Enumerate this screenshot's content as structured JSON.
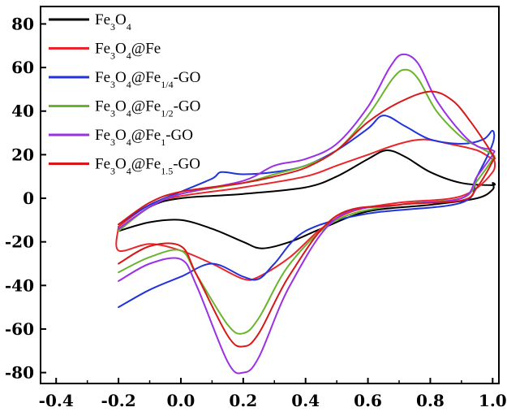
{
  "chart_data": {
    "type": "line",
    "title": "",
    "xlabel": "",
    "ylabel": "",
    "xlim": [
      -0.45,
      1.02
    ],
    "ylim": [
      -85,
      88
    ],
    "x_ticks": [
      -0.4,
      -0.2,
      0.0,
      0.2,
      0.4,
      0.6,
      0.8,
      1.0
    ],
    "y_ticks": [
      -80,
      -60,
      -40,
      -20,
      0,
      20,
      40,
      60,
      80
    ],
    "x_tick_labels": [
      "-0.4",
      "-0.2",
      "0.0",
      "0.2",
      "0.4",
      "0.6",
      "0.8",
      "1.0"
    ],
    "y_tick_labels": [
      "-80",
      "-60",
      "-40",
      "-20",
      "0",
      "20",
      "40",
      "60",
      "80"
    ],
    "grid": false,
    "legend_position": "top-left",
    "series": [
      {
        "name": "Fe3O4",
        "legend": [
          {
            "t": "Fe"
          },
          {
            "t": "3",
            "sub": true
          },
          {
            "t": "O"
          },
          {
            "t": "4",
            "sub": true
          }
        ],
        "color": "#000000",
        "points": [
          [
            -0.2,
            -15
          ],
          [
            -0.1,
            -4
          ],
          [
            0.0,
            0
          ],
          [
            0.2,
            2
          ],
          [
            0.4,
            5
          ],
          [
            0.5,
            10
          ],
          [
            0.6,
            18
          ],
          [
            0.66,
            22
          ],
          [
            0.72,
            19
          ],
          [
            0.8,
            12
          ],
          [
            0.9,
            7
          ],
          [
            1.0,
            6
          ],
          [
            1.0,
            7
          ],
          [
            1.0,
            4
          ],
          [
            0.95,
            0
          ],
          [
            0.8,
            -3
          ],
          [
            0.6,
            -6
          ],
          [
            0.45,
            -14
          ],
          [
            0.35,
            -20
          ],
          [
            0.26,
            -23
          ],
          [
            0.2,
            -20
          ],
          [
            0.1,
            -14
          ],
          [
            0.0,
            -10
          ],
          [
            -0.1,
            -11
          ],
          [
            -0.2,
            -15
          ]
        ]
      },
      {
        "name": "Fe3O4@Fe",
        "legend": [
          {
            "t": "Fe"
          },
          {
            "t": "3",
            "sub": true
          },
          {
            "t": "O"
          },
          {
            "t": "4",
            "sub": true
          },
          {
            "t": "@Fe"
          }
        ],
        "color": "#e8262b",
        "points": [
          [
            -0.2,
            -13
          ],
          [
            -0.1,
            -3
          ],
          [
            0.0,
            1
          ],
          [
            0.2,
            5
          ],
          [
            0.4,
            10
          ],
          [
            0.5,
            15
          ],
          [
            0.6,
            20
          ],
          [
            0.7,
            25
          ],
          [
            0.78,
            27
          ],
          [
            0.86,
            25
          ],
          [
            0.95,
            22
          ],
          [
            1.0,
            18
          ],
          [
            1.0,
            20
          ],
          [
            1.0,
            12
          ],
          [
            0.9,
            1
          ],
          [
            0.7,
            -2
          ],
          [
            0.55,
            -6
          ],
          [
            0.45,
            -14
          ],
          [
            0.35,
            -27
          ],
          [
            0.25,
            -36
          ],
          [
            0.2,
            -37
          ],
          [
            0.1,
            -30
          ],
          [
            0.0,
            -24
          ],
          [
            -0.1,
            -21
          ],
          [
            -0.2,
            -24
          ],
          [
            -0.2,
            -13
          ]
        ]
      },
      {
        "name": "Fe3O4@Fe1/4-GO",
        "legend": [
          {
            "t": "Fe"
          },
          {
            "t": "3",
            "sub": true
          },
          {
            "t": "O"
          },
          {
            "t": "4",
            "sub": true
          },
          {
            "t": "@Fe"
          },
          {
            "t": "1/4",
            "sub": true
          },
          {
            "t": "-GO"
          }
        ],
        "color": "#2233dd",
        "points": [
          [
            -0.2,
            -12
          ],
          [
            -0.1,
            -3
          ],
          [
            0.0,
            3
          ],
          [
            0.1,
            9
          ],
          [
            0.13,
            12
          ],
          [
            0.2,
            11
          ],
          [
            0.3,
            12
          ],
          [
            0.4,
            15
          ],
          [
            0.5,
            22
          ],
          [
            0.6,
            32
          ],
          [
            0.65,
            38
          ],
          [
            0.72,
            33
          ],
          [
            0.8,
            27
          ],
          [
            0.9,
            25
          ],
          [
            0.97,
            27
          ],
          [
            1.0,
            31
          ],
          [
            1.0,
            25
          ],
          [
            0.95,
            10
          ],
          [
            0.9,
            -2
          ],
          [
            0.6,
            -7
          ],
          [
            0.4,
            -15
          ],
          [
            0.3,
            -30
          ],
          [
            0.25,
            -37
          ],
          [
            0.2,
            -36
          ],
          [
            0.1,
            -30
          ],
          [
            0.0,
            -36
          ],
          [
            -0.1,
            -42
          ],
          [
            -0.2,
            -50
          ]
        ]
      },
      {
        "name": "Fe3O4@Fe1/2-GO",
        "legend": [
          {
            "t": "Fe"
          },
          {
            "t": "3",
            "sub": true
          },
          {
            "t": "O"
          },
          {
            "t": "4",
            "sub": true
          },
          {
            "t": "@Fe"
          },
          {
            "t": "1/2",
            "sub": true
          },
          {
            "t": "-GO"
          }
        ],
        "color": "#6ab42d",
        "points": [
          [
            -0.2,
            -15
          ],
          [
            -0.1,
            -4
          ],
          [
            0.0,
            2
          ],
          [
            0.2,
            7
          ],
          [
            0.3,
            11
          ],
          [
            0.4,
            15
          ],
          [
            0.5,
            22
          ],
          [
            0.6,
            38
          ],
          [
            0.68,
            55
          ],
          [
            0.72,
            59
          ],
          [
            0.76,
            55
          ],
          [
            0.82,
            40
          ],
          [
            0.9,
            28
          ],
          [
            0.95,
            24
          ],
          [
            1.0,
            20
          ],
          [
            1.0,
            18
          ],
          [
            0.95,
            8
          ],
          [
            0.9,
            0
          ],
          [
            0.7,
            -3
          ],
          [
            0.5,
            -10
          ],
          [
            0.35,
            -30
          ],
          [
            0.25,
            -55
          ],
          [
            0.2,
            -62
          ],
          [
            0.15,
            -58
          ],
          [
            0.05,
            -35
          ],
          [
            0.0,
            -24
          ],
          [
            -0.1,
            -27
          ],
          [
            -0.2,
            -34
          ]
        ]
      },
      {
        "name": "Fe3O4@Fe1-GO",
        "legend": [
          {
            "t": "Fe"
          },
          {
            "t": "3",
            "sub": true
          },
          {
            "t": "O"
          },
          {
            "t": "4",
            "sub": true
          },
          {
            "t": "@Fe"
          },
          {
            "t": "1",
            "sub": true
          },
          {
            "t": "-GO"
          }
        ],
        "color": "#9b30e6",
        "points": [
          [
            -0.2,
            -14
          ],
          [
            -0.1,
            -4
          ],
          [
            0.0,
            2
          ],
          [
            0.2,
            8
          ],
          [
            0.3,
            15
          ],
          [
            0.4,
            18
          ],
          [
            0.5,
            25
          ],
          [
            0.6,
            42
          ],
          [
            0.67,
            60
          ],
          [
            0.71,
            66
          ],
          [
            0.76,
            62
          ],
          [
            0.82,
            45
          ],
          [
            0.9,
            30
          ],
          [
            0.95,
            24
          ],
          [
            1.0,
            22
          ],
          [
            1.0,
            20
          ],
          [
            0.95,
            10
          ],
          [
            0.9,
            0
          ],
          [
            0.7,
            -3
          ],
          [
            0.5,
            -9
          ],
          [
            0.35,
            -40
          ],
          [
            0.25,
            -73
          ],
          [
            0.2,
            -80
          ],
          [
            0.15,
            -75
          ],
          [
            0.05,
            -40
          ],
          [
            0.0,
            -28
          ],
          [
            -0.1,
            -30
          ],
          [
            -0.2,
            -38
          ]
        ]
      },
      {
        "name": "Fe3O4@Fe1.5-GO",
        "legend": [
          {
            "t": "Fe"
          },
          {
            "t": "3",
            "sub": true
          },
          {
            "t": "O"
          },
          {
            "t": "4",
            "sub": true
          },
          {
            "t": "@Fe"
          },
          {
            "t": "1.5",
            "sub": true
          },
          {
            "t": "-GO"
          }
        ],
        "color": "#d81818",
        "points": [
          [
            -0.2,
            -12
          ],
          [
            -0.1,
            -2
          ],
          [
            0.0,
            3
          ],
          [
            0.2,
            7
          ],
          [
            0.3,
            10
          ],
          [
            0.4,
            14
          ],
          [
            0.5,
            22
          ],
          [
            0.6,
            35
          ],
          [
            0.7,
            44
          ],
          [
            0.8,
            49
          ],
          [
            0.87,
            45
          ],
          [
            0.93,
            35
          ],
          [
            1.0,
            20
          ],
          [
            1.0,
            17
          ],
          [
            0.95,
            5
          ],
          [
            0.9,
            -1
          ],
          [
            0.7,
            -3
          ],
          [
            0.5,
            -8
          ],
          [
            0.35,
            -35
          ],
          [
            0.25,
            -62
          ],
          [
            0.2,
            -68
          ],
          [
            0.15,
            -63
          ],
          [
            0.05,
            -35
          ],
          [
            0.0,
            -22
          ],
          [
            -0.1,
            -22
          ],
          [
            -0.2,
            -30
          ]
        ]
      }
    ]
  }
}
